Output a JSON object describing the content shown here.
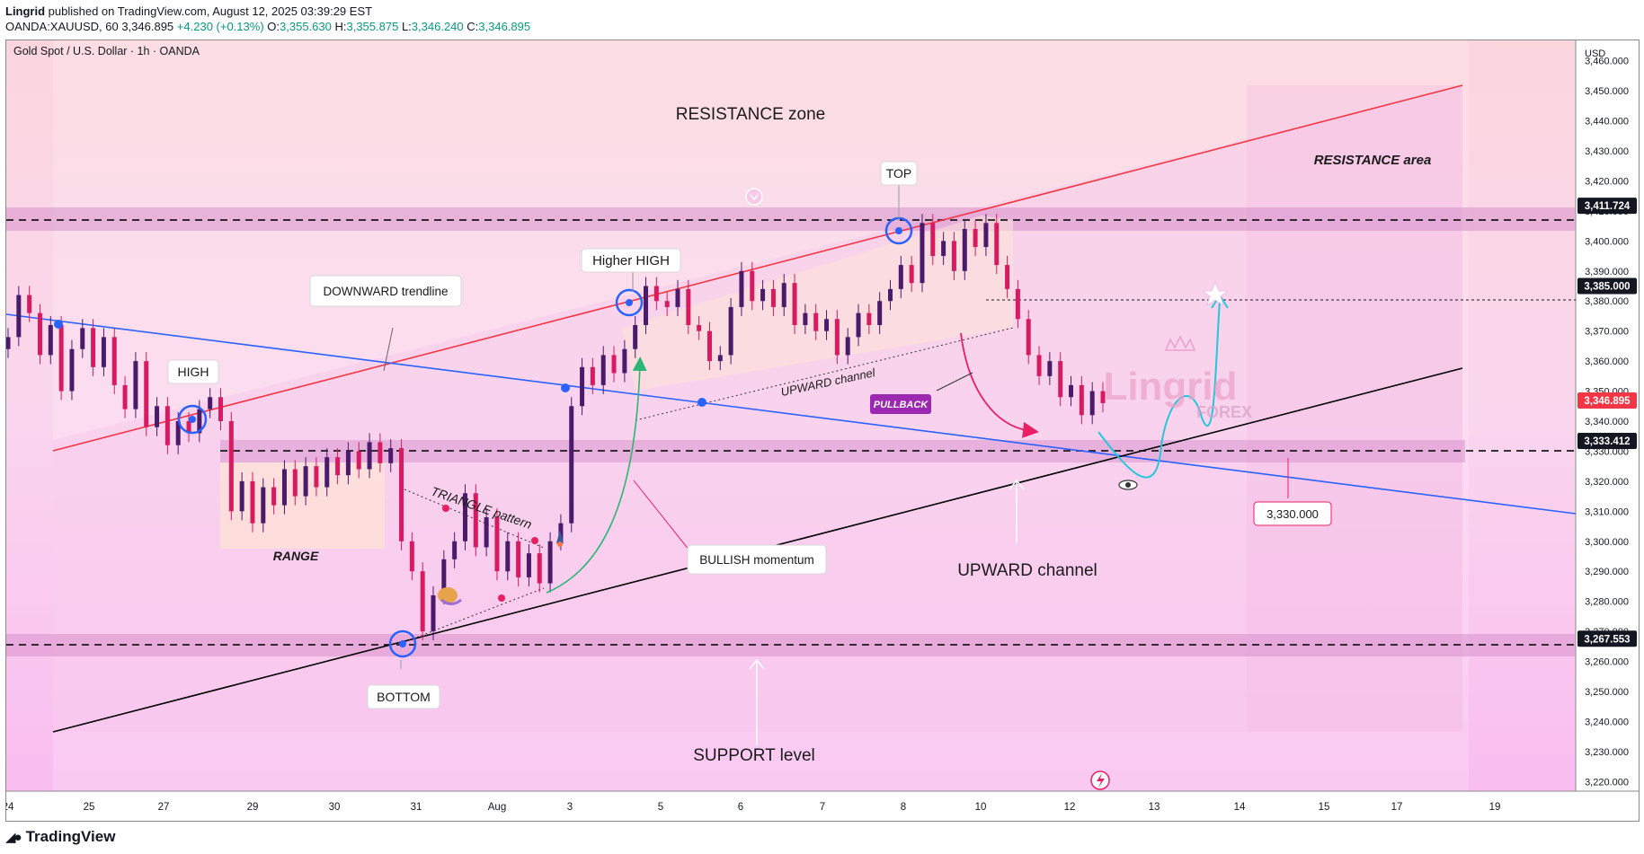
{
  "publisher": {
    "author": "Lingrid",
    "text": " published on TradingView.com, August 12, 2025 03:39:29 EST"
  },
  "symbol_line": {
    "symbol": "OANDA:XAUUSD, 60",
    "last": "3,346.895",
    "change": "+4.230 (+0.13%)",
    "o_label": "O:",
    "o": "3,355.630",
    "h_label": "H:",
    "h": "3,355.875",
    "l_label": "L:",
    "l": "3,346.240",
    "c_label": "C:",
    "c": "3,346.895"
  },
  "chart_header": "Gold Spot / U.S. Dollar · 1h · OANDA",
  "currency": "USD",
  "footer_logo": "TradingView",
  "colors": {
    "candle_up": "#4a1a6b",
    "candle_down": "#d81b60",
    "resistance_line": "#f23645",
    "blue_line": "#2962ff",
    "channel_line": "#000000",
    "projection": "#26c6da",
    "band": "#d88fcc"
  },
  "chart_data": {
    "type": "line",
    "ylim": [
      3215,
      3465
    ],
    "y_ticks": [
      3220,
      3230,
      3240,
      3250,
      3260,
      3270,
      3280,
      3290,
      3300,
      3310,
      3320,
      3330,
      3340,
      3350,
      3360,
      3370,
      3380,
      3390,
      3400,
      3410,
      3420,
      3430,
      3440,
      3450,
      3460
    ],
    "x_ticks": [
      "24",
      "25",
      "27",
      "29",
      "30",
      "31",
      "Aug",
      "3",
      "5",
      "6",
      "7",
      "8",
      "10",
      "12",
      "13",
      "14",
      "15",
      "17",
      "19"
    ],
    "price_labels": [
      "3,411.724",
      "3,385.000",
      "3,346.895",
      "3,333.412",
      "3,267.553"
    ],
    "series": [
      {
        "values": [
          3368,
          3382,
          3376,
          3362,
          3372,
          3350,
          3364,
          3371,
          3358,
          3368,
          3352,
          3344,
          3360,
          3338,
          3345,
          3332,
          3340,
          3336,
          3344,
          3348,
          3340,
          3310,
          3320,
          3306,
          3318,
          3312,
          3324,
          3315,
          3325,
          3318,
          3328,
          3322,
          3330,
          3324,
          3333,
          3326,
          3331,
          3300,
          3290,
          3270,
          3282,
          3294,
          3300,
          3316,
          3298,
          3308,
          3290,
          3300,
          3288,
          3296,
          3286,
          3300,
          3306,
          3345,
          3358,
          3352,
          3362,
          3356,
          3364,
          3372,
          3385,
          3380,
          3378,
          3384,
          3372,
          3370,
          3360,
          3362,
          3378,
          3390,
          3380,
          3384,
          3378,
          3386,
          3372,
          3376,
          3370,
          3374,
          3362,
          3368,
          3376,
          3372,
          3380,
          3384,
          3392,
          3386,
          3406,
          3395,
          3400,
          3390,
          3404,
          3398,
          3406,
          3392,
          3384,
          3374,
          3362,
          3355,
          3360,
          3348,
          3352,
          3342,
          3350,
          3346
        ]
      }
    ]
  },
  "annotations": {
    "resistance_zone": "RESISTANCE zone",
    "resistance_area": "RESISTANCE area",
    "top": "TOP",
    "higher_high": "Higher HIGH",
    "downward_trendline": "DOWNWARD trendline",
    "high": "HIGH",
    "upward_channel_small": "UPWARD channel",
    "pullback": "PULLBACK",
    "range": "RANGE",
    "triangle": "TRIANGLE pattern",
    "bullish_momentum": "BULLISH momentum",
    "upward_channel": "UPWARD channel",
    "bottom": "BOTTOM",
    "support_level": "SUPPORT level",
    "target_label": "3,330.000",
    "watermark_top": "Lingrid",
    "watermark_bottom": "FOREX"
  }
}
